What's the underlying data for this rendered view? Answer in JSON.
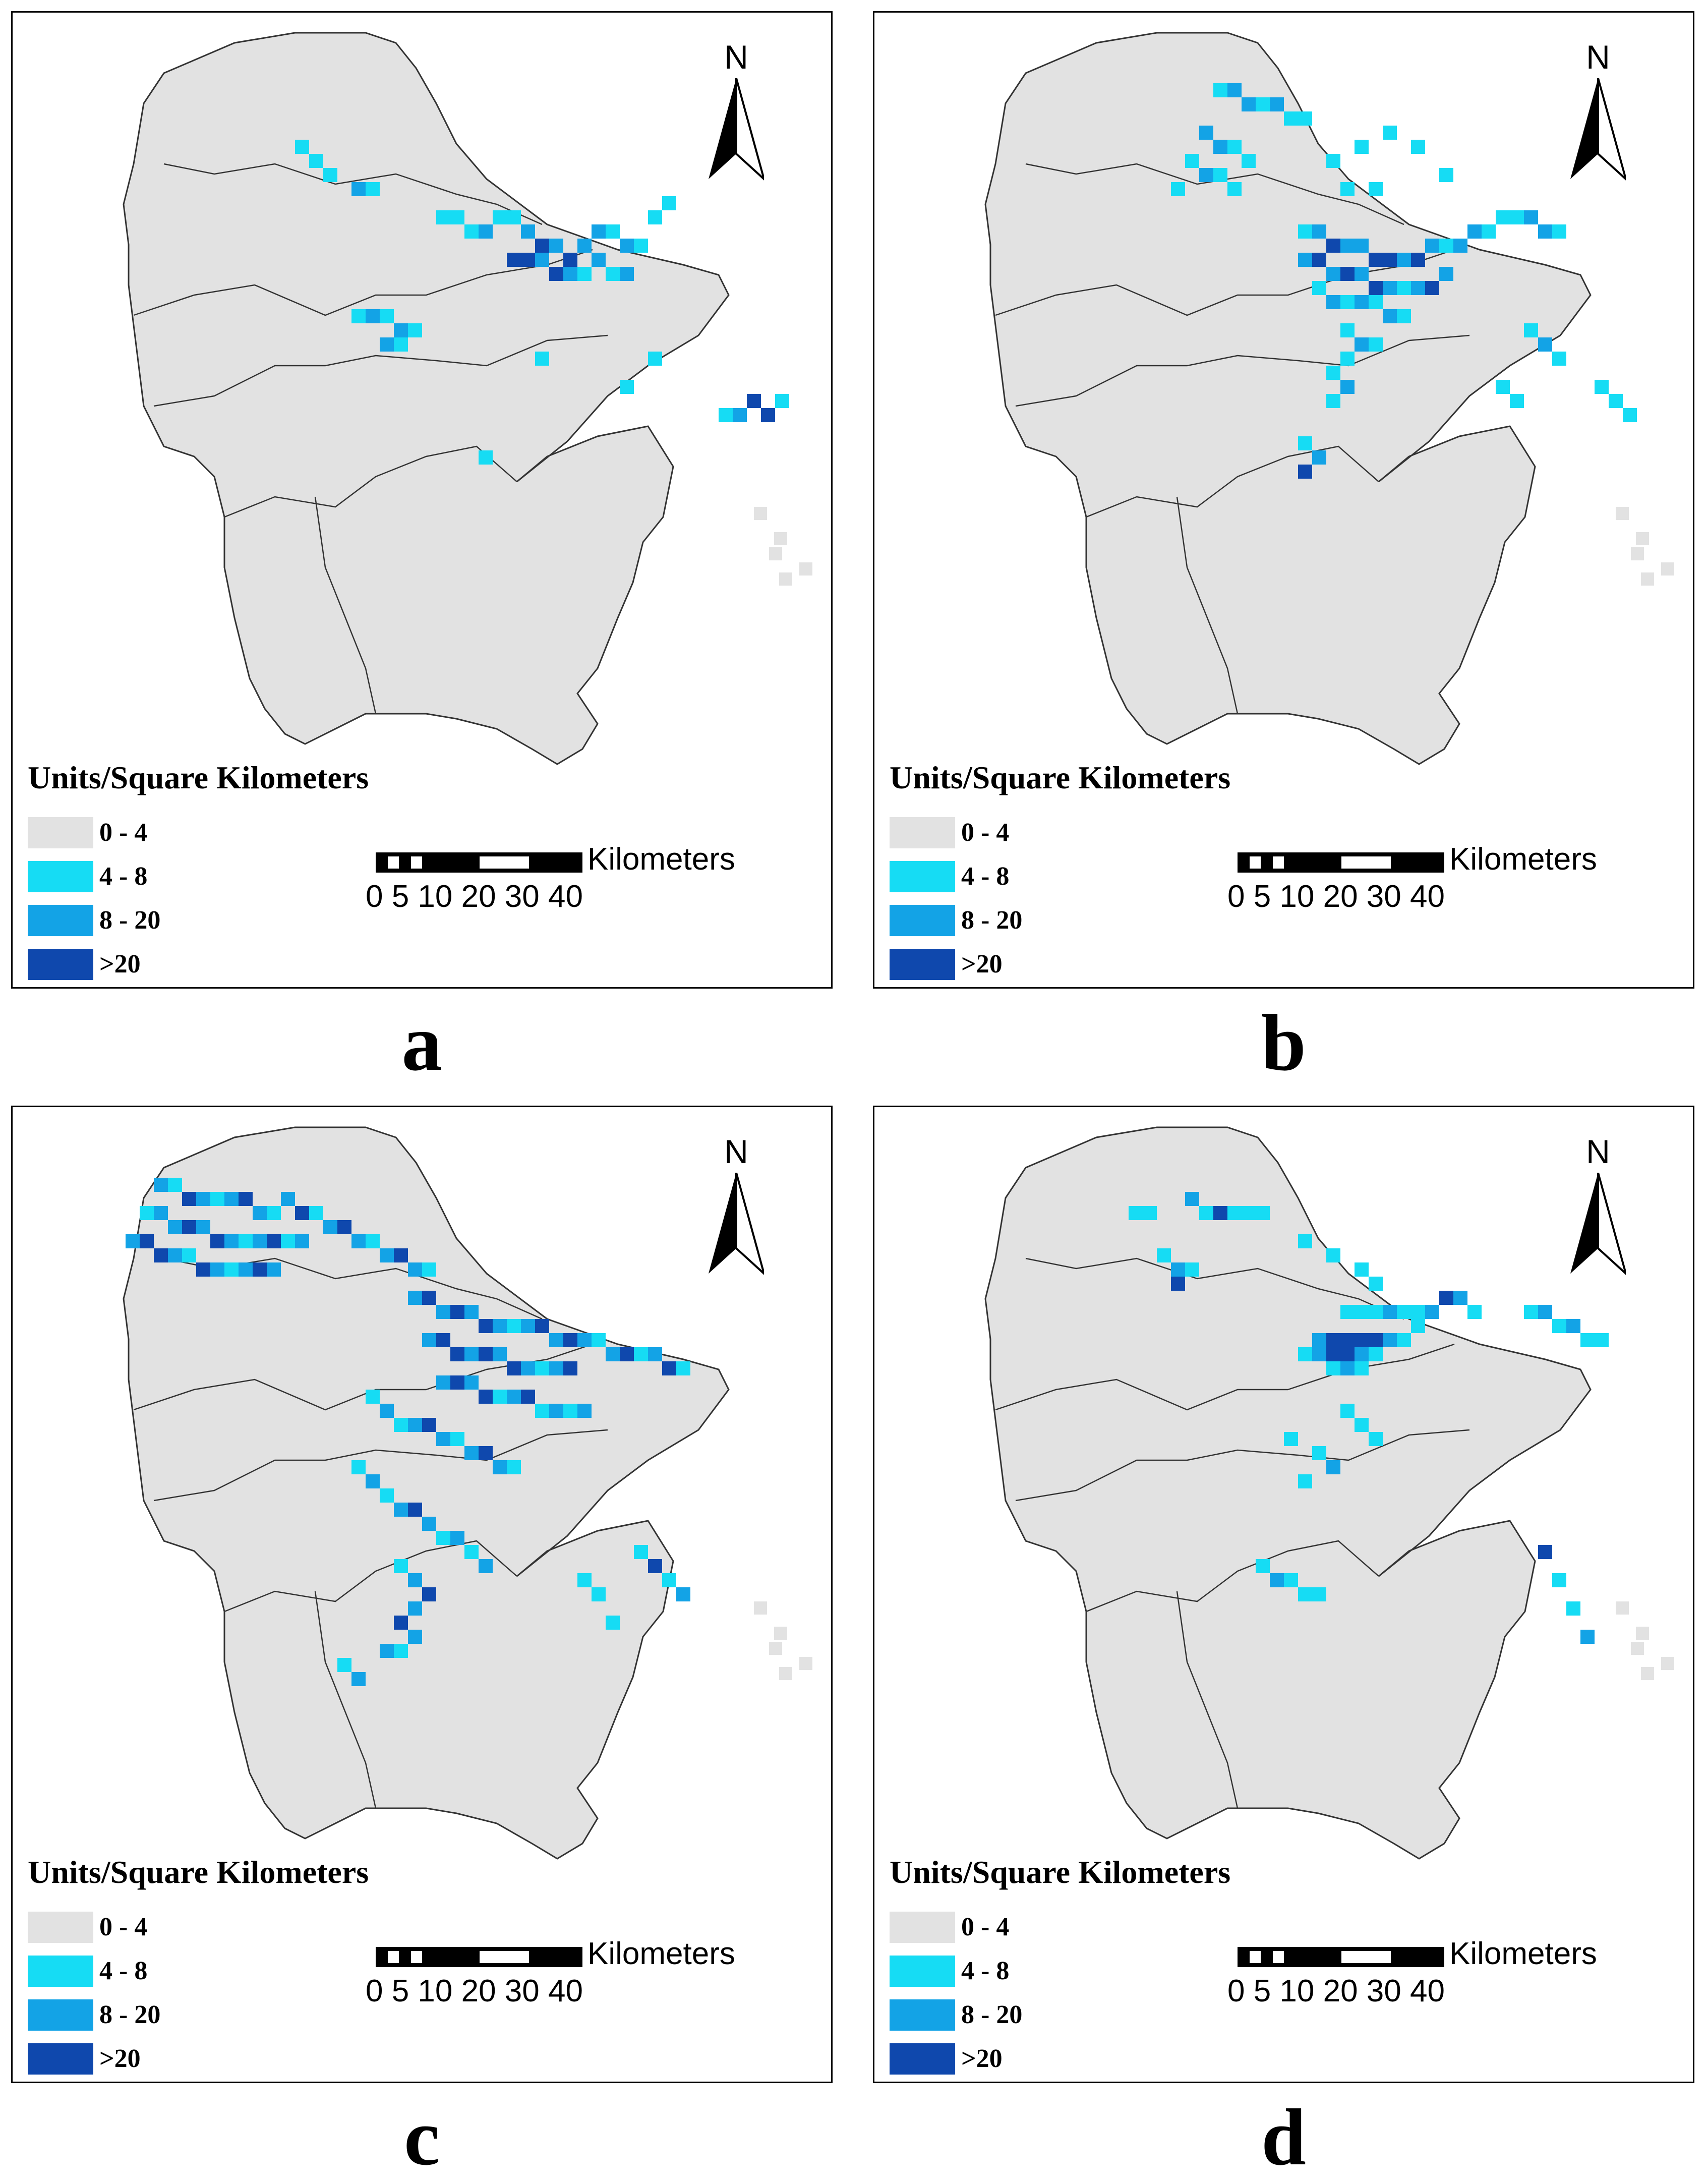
{
  "colors": {
    "class_0_4": "#e2e2e2",
    "class_4_8": "#16dcf4",
    "class_8_20": "#13a3e6",
    "class_gt20": "#0f48ad",
    "outline": "#333333"
  },
  "icons": [
    "north-arrow-icon",
    "scale-bar-icon",
    "legend-swatch"
  ],
  "panels": [
    {
      "letter": "a",
      "legend_title": "Units/Square Kilometers",
      "legend": [
        {
          "label": "0 - 4",
          "color": "#e2e2e2"
        },
        {
          "label": "4 - 8",
          "color": "#16dcf4"
        },
        {
          "label": "8 - 20",
          "color": "#13a3e6"
        },
        {
          "label": ">20",
          "color": "#0f48ad"
        }
      ],
      "scale_unit": "Kilometers",
      "scale_ticks": "0 5 10  20  30  40",
      "north": "N"
    },
    {
      "letter": "b",
      "legend_title": "Units/Square Kilometers",
      "legend": [
        {
          "label": "0 - 4",
          "color": "#e2e2e2"
        },
        {
          "label": "4 - 8",
          "color": "#16dcf4"
        },
        {
          "label": "8 - 20",
          "color": "#13a3e6"
        },
        {
          "label": ">20",
          "color": "#0f48ad"
        }
      ],
      "scale_unit": "Kilometers",
      "scale_ticks": "0 5 10  20  30  40",
      "north": "N"
    },
    {
      "letter": "c",
      "legend_title": "Units/Square Kilometers",
      "legend": [
        {
          "label": "0 - 4",
          "color": "#e2e2e2"
        },
        {
          "label": "4 - 8",
          "color": "#16dcf4"
        },
        {
          "label": "8 - 20",
          "color": "#13a3e6"
        },
        {
          "label": ">20",
          "color": "#0f48ad"
        }
      ],
      "scale_unit": "Kilometers",
      "scale_ticks": "0 5 10  20  30  40",
      "north": "N"
    },
    {
      "letter": "d",
      "legend_title": "Units/Square Kilometers",
      "legend": [
        {
          "label": "0 - 4",
          "color": "#e2e2e2"
        },
        {
          "label": "4 - 8",
          "color": "#16dcf4"
        },
        {
          "label": "8 - 20",
          "color": "#13a3e6"
        },
        {
          "label": ">20",
          "color": "#0f48ad"
        }
      ],
      "scale_unit": "Kilometers",
      "scale_ticks": "0 5 10  20  30  40",
      "north": "N"
    }
  ]
}
